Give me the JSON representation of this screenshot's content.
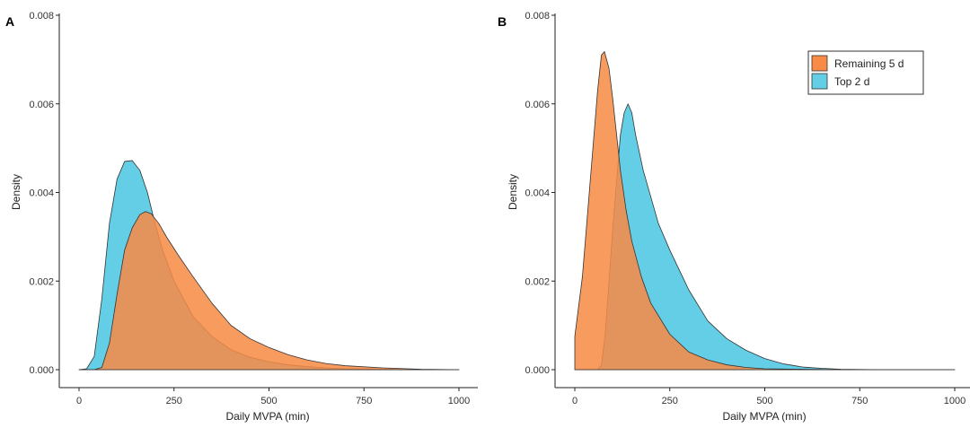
{
  "colors": {
    "remaining": "#f78a45",
    "top": "#63cee6",
    "overlap": "#d2844c",
    "stroke": "#333333"
  },
  "chart_data": [
    {
      "panel": "A",
      "type": "area",
      "xlabel": "Daily MVPA (min)",
      "ylabel": "Density",
      "xlim": [
        0,
        1000
      ],
      "ylim": [
        0,
        0.008
      ],
      "x_ticks": [
        0,
        250,
        500,
        750,
        1000
      ],
      "x_tick_labels": [
        "0",
        "250",
        "500",
        "750",
        "1000"
      ],
      "y_ticks": [
        0,
        0.002,
        0.004,
        0.006,
        0.008
      ],
      "y_tick_labels": [
        "0.000",
        "0.002",
        "0.004",
        "0.006",
        "0.008"
      ],
      "grid": false,
      "legend": "none",
      "series": [
        {
          "name": "Top 2 d",
          "x": [
            0,
            20,
            40,
            60,
            80,
            100,
            120,
            140,
            160,
            180,
            200,
            220,
            250,
            300,
            350,
            400,
            450,
            500,
            550,
            600,
            650,
            700,
            800,
            900,
            1000
          ],
          "y": [
            0,
            2e-05,
            0.0003,
            0.0016,
            0.0033,
            0.0043,
            0.0047,
            0.00472,
            0.0045,
            0.004,
            0.0033,
            0.0027,
            0.002,
            0.0012,
            0.00075,
            0.00045,
            0.00028,
            0.00018,
            0.00011,
            7e-05,
            4e-05,
            2e-05,
            1e-05,
            0,
            0
          ]
        },
        {
          "name": "Remaining 5 d",
          "x": [
            0,
            40,
            60,
            80,
            100,
            120,
            140,
            160,
            175,
            190,
            210,
            230,
            260,
            300,
            350,
            400,
            450,
            500,
            550,
            600,
            650,
            700,
            800,
            900,
            1000
          ],
          "y": [
            0,
            0,
            5e-05,
            0.0006,
            0.0017,
            0.0027,
            0.0032,
            0.0035,
            0.00357,
            0.00352,
            0.0033,
            0.003,
            0.0026,
            0.0021,
            0.0015,
            0.001,
            0.0007,
            0.0005,
            0.00034,
            0.00022,
            0.00014,
            9e-05,
            4e-05,
            1e-05,
            0
          ]
        }
      ]
    },
    {
      "panel": "B",
      "type": "area",
      "xlabel": "Daily MVPA (min)",
      "ylabel": "Density",
      "xlim": [
        0,
        1000
      ],
      "ylim": [
        0,
        0.008
      ],
      "x_ticks": [
        0,
        250,
        500,
        750,
        1000
      ],
      "x_tick_labels": [
        "0",
        "250",
        "500",
        "750",
        "1000"
      ],
      "y_ticks": [
        0,
        0.002,
        0.004,
        0.006,
        0.008
      ],
      "y_tick_labels": [
        "0.000",
        "0.002",
        "0.004",
        "0.006",
        "0.008"
      ],
      "grid": false,
      "legend": "top-right",
      "series": [
        {
          "name": "Remaining 5 d",
          "x": [
            0,
            20,
            40,
            60,
            70,
            78,
            90,
            100,
            110,
            120,
            135,
            150,
            175,
            200,
            250,
            300,
            350,
            400,
            450,
            500,
            600,
            700,
            800,
            1000
          ],
          "y": [
            0.00075,
            0.0021,
            0.0042,
            0.0063,
            0.0071,
            0.00718,
            0.0068,
            0.0061,
            0.0053,
            0.0045,
            0.0036,
            0.0029,
            0.0021,
            0.0015,
            0.0008,
            0.0004,
            0.00022,
            0.00011,
            5e-05,
            2e-05,
            1e-05,
            0,
            0,
            0
          ]
        },
        {
          "name": "Top 2 d",
          "x": [
            0,
            60,
            70,
            80,
            100,
            120,
            130,
            140,
            150,
            160,
            180,
            200,
            220,
            250,
            300,
            350,
            400,
            450,
            500,
            550,
            600,
            650,
            700,
            800,
            1000
          ],
          "y": [
            0,
            0,
            0.0001,
            0.0008,
            0.0032,
            0.0053,
            0.0058,
            0.006,
            0.0058,
            0.0053,
            0.0045,
            0.0039,
            0.0033,
            0.0027,
            0.0018,
            0.0011,
            0.0007,
            0.00044,
            0.00025,
            0.00013,
            6e-05,
            3e-05,
            1e-05,
            0,
            0
          ]
        }
      ]
    }
  ]
}
